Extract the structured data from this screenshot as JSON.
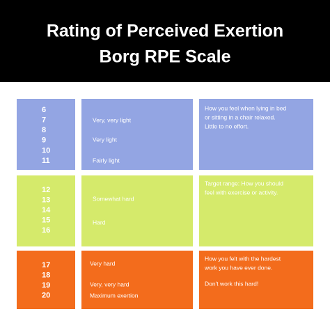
{
  "header": {
    "title_lines": [
      "Rating of Perceived Exertion",
      "Borg RPE Scale"
    ]
  },
  "rows": [
    {
      "numbers": [
        6,
        7,
        8,
        9,
        10,
        11
      ],
      "descriptors": [
        "Very, very light",
        "Very light",
        "Fairly light"
      ],
      "paragraphs": [
        [
          "How you feel when lying in bed",
          "or sitting in a chair relaxed.",
          "Little to no effort."
        ]
      ]
    },
    {
      "numbers": [
        12,
        13,
        14,
        15,
        16
      ],
      "descriptors": [
        "Somewhat hard",
        "Hard"
      ],
      "paragraphs": [
        [
          "Target range: How you should",
          "feel with exercise or activity."
        ]
      ]
    },
    {
      "numbers": [
        17,
        18,
        19,
        20
      ],
      "descriptors": [
        "Very hard",
        "Very, very hard",
        "Maximum exertion"
      ],
      "paragraphs": [
        [
          "How you felt with the hardest",
          "work you have ever done."
        ],
        [
          "Don't work this hard!"
        ]
      ]
    }
  ]
}
